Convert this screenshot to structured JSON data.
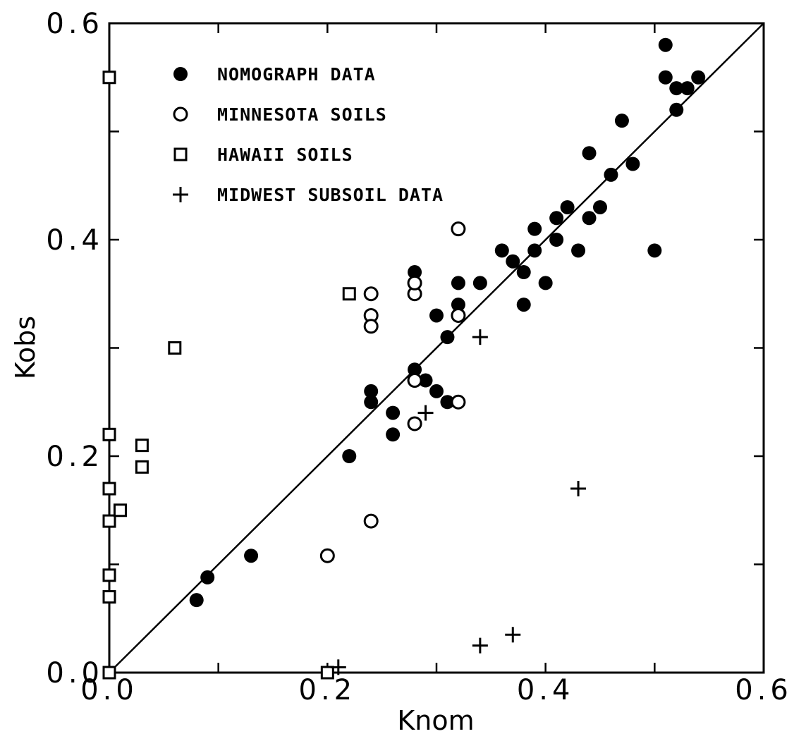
{
  "chart_data": {
    "type": "scatter",
    "xlabel": "Knom",
    "ylabel": "Kobs",
    "xlim": [
      0.0,
      0.6
    ],
    "ylim": [
      0.0,
      0.6
    ],
    "x_ticks": [
      0.0,
      0.2,
      0.4,
      0.6
    ],
    "y_ticks": [
      0.0,
      0.2,
      0.4,
      0.6
    ],
    "x_tick_labels": [
      "0.0",
      "0.2",
      "0.4",
      "0.6"
    ],
    "y_tick_labels": [
      "0.0",
      "0.2",
      "0.4",
      "0.6"
    ],
    "minor_tick_step": 0.1,
    "grid": false,
    "legend_position": "top-left",
    "reference_line": {
      "from": [
        0.0,
        0.0
      ],
      "to": [
        0.6,
        0.6
      ]
    },
    "series": [
      {
        "name": "NOMOGRAPH DATA",
        "marker": "filled-circle",
        "points": [
          [
            0.08,
            0.067
          ],
          [
            0.09,
            0.088
          ],
          [
            0.13,
            0.108
          ],
          [
            0.22,
            0.2
          ],
          [
            0.24,
            0.25
          ],
          [
            0.24,
            0.26
          ],
          [
            0.26,
            0.24
          ],
          [
            0.26,
            0.22
          ],
          [
            0.28,
            0.28
          ],
          [
            0.28,
            0.37
          ],
          [
            0.29,
            0.27
          ],
          [
            0.3,
            0.26
          ],
          [
            0.3,
            0.33
          ],
          [
            0.31,
            0.25
          ],
          [
            0.31,
            0.31
          ],
          [
            0.32,
            0.36
          ],
          [
            0.32,
            0.34
          ],
          [
            0.34,
            0.36
          ],
          [
            0.36,
            0.39
          ],
          [
            0.37,
            0.38
          ],
          [
            0.38,
            0.37
          ],
          [
            0.38,
            0.34
          ],
          [
            0.39,
            0.39
          ],
          [
            0.39,
            0.41
          ],
          [
            0.4,
            0.36
          ],
          [
            0.41,
            0.4
          ],
          [
            0.41,
            0.42
          ],
          [
            0.42,
            0.43
          ],
          [
            0.43,
            0.39
          ],
          [
            0.44,
            0.42
          ],
          [
            0.44,
            0.48
          ],
          [
            0.45,
            0.43
          ],
          [
            0.46,
            0.46
          ],
          [
            0.47,
            0.51
          ],
          [
            0.48,
            0.47
          ],
          [
            0.5,
            0.39
          ],
          [
            0.51,
            0.58
          ],
          [
            0.51,
            0.55
          ],
          [
            0.52,
            0.54
          ],
          [
            0.52,
            0.52
          ],
          [
            0.53,
            0.54
          ],
          [
            0.54,
            0.55
          ]
        ]
      },
      {
        "name": "MINNESOTA SOILS",
        "marker": "open-circle",
        "points": [
          [
            0.2,
            0.108
          ],
          [
            0.24,
            0.14
          ],
          [
            0.24,
            0.35
          ],
          [
            0.24,
            0.33
          ],
          [
            0.24,
            0.32
          ],
          [
            0.28,
            0.23
          ],
          [
            0.28,
            0.27
          ],
          [
            0.28,
            0.35
          ],
          [
            0.28,
            0.36
          ],
          [
            0.32,
            0.25
          ],
          [
            0.32,
            0.33
          ],
          [
            0.32,
            0.41
          ]
        ]
      },
      {
        "name": "HAWAII SOILS",
        "marker": "open-square",
        "points": [
          [
            0.0,
            0.55
          ],
          [
            0.0,
            0.22
          ],
          [
            0.0,
            0.17
          ],
          [
            0.0,
            0.14
          ],
          [
            0.0,
            0.09
          ],
          [
            0.0,
            0.07
          ],
          [
            0.0,
            0.0
          ],
          [
            0.01,
            0.15
          ],
          [
            0.03,
            0.21
          ],
          [
            0.03,
            0.19
          ],
          [
            0.06,
            0.3
          ],
          [
            0.2,
            0.0
          ],
          [
            0.22,
            0.35
          ]
        ]
      },
      {
        "name": "MIDWEST SUBSOIL DATA",
        "marker": "plus",
        "points": [
          [
            0.21,
            0.005
          ],
          [
            0.29,
            0.24
          ],
          [
            0.34,
            0.31
          ],
          [
            0.34,
            0.025
          ],
          [
            0.37,
            0.035
          ],
          [
            0.43,
            0.17
          ]
        ]
      }
    ]
  }
}
